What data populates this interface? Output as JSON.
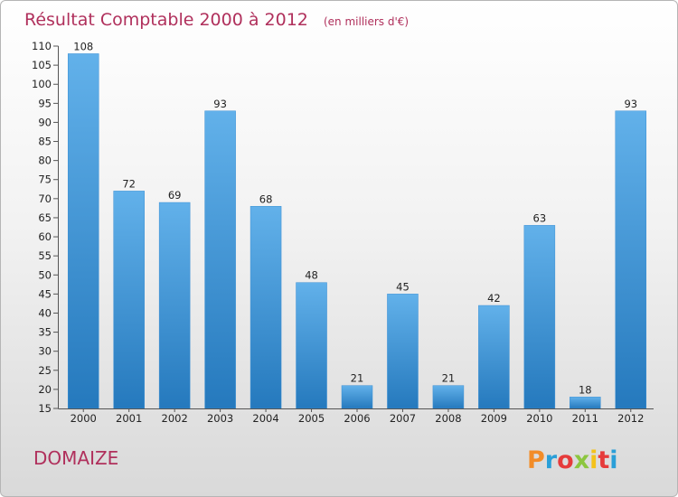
{
  "chart_data": {
    "type": "bar",
    "title": "Résultat Comptable 2000 à 2012",
    "subtitle": "(en milliers d'€)",
    "categories": [
      "2000",
      "2001",
      "2002",
      "2003",
      "2004",
      "2005",
      "2006",
      "2007",
      "2008",
      "2009",
      "2010",
      "2011",
      "2012"
    ],
    "values": [
      108,
      72,
      69,
      93,
      68,
      48,
      21,
      45,
      21,
      42,
      63,
      18,
      93
    ],
    "ylim": [
      15,
      110
    ],
    "yticks": [
      15,
      20,
      25,
      30,
      35,
      40,
      45,
      50,
      55,
      60,
      65,
      70,
      75,
      80,
      85,
      90,
      95,
      100,
      105,
      110
    ],
    "grid": false,
    "bar_color": "#3a8fd4"
  },
  "commune": "DOMAIZE",
  "logo": {
    "text": "Proxiti",
    "colors": [
      "#f28c28",
      "#2a9fd8",
      "#e63b3b",
      "#8cc63f",
      "#f4c21b",
      "#e63b3b",
      "#2a9fd8"
    ]
  },
  "colors": {
    "title": "#b0305c",
    "bar_top": "#62b1ea",
    "bar_bottom": "#2579bd"
  }
}
